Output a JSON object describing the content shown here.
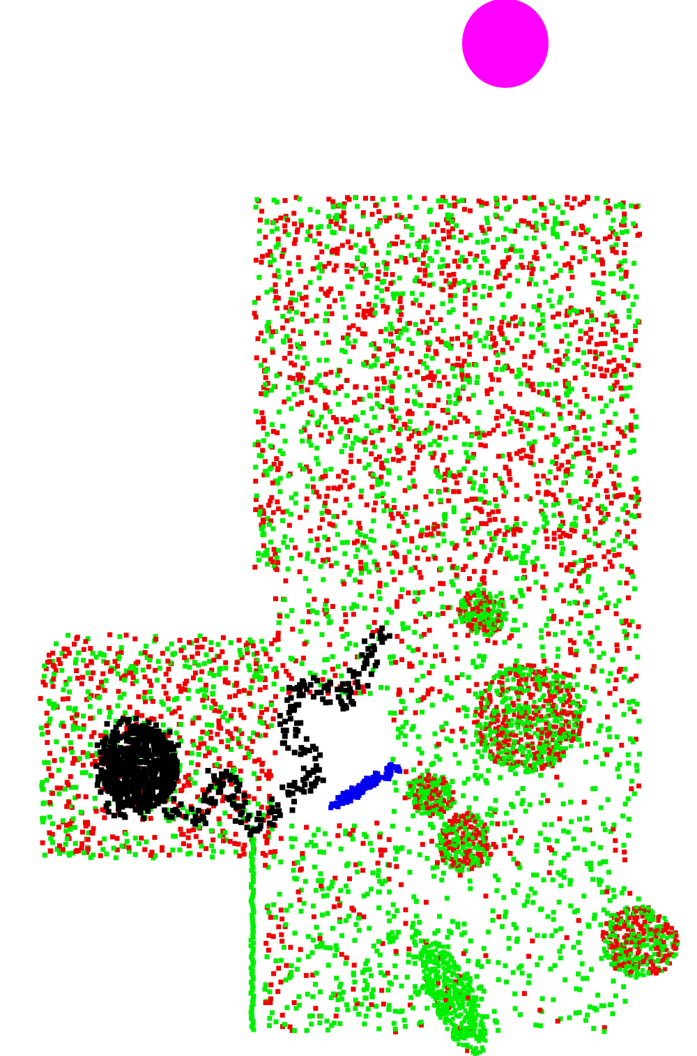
{
  "map": {
    "colors": {
      "background": "#ffffff",
      "free_points": "#00ee00",
      "occupied_points": "#ee0000",
      "explored_trajectory": "#000000",
      "planned_path": "#0000ee",
      "goal_marker": "#ff00ff"
    },
    "legend_semantics": {
      "free_points": "green-dots",
      "occupied_points": "red-dots",
      "explored_trajectory": "black-trail",
      "planned_path": "blue-segment",
      "goal_marker": "magenta-disc"
    }
  }
}
